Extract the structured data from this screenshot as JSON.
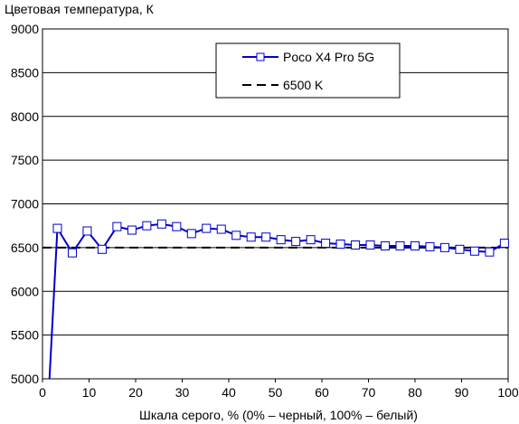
{
  "chart_data": {
    "type": "line",
    "ylabel": "Цветовая температура, К",
    "xlabel": "Шкала серого, % (0% – черный, 100% – белый)",
    "xlim": [
      0,
      100
    ],
    "ylim": [
      5000,
      9000
    ],
    "xticks": [
      "0",
      "10",
      "20",
      "30",
      "40",
      "50",
      "60",
      "70",
      "80",
      "90",
      "100"
    ],
    "yticks": [
      "5000",
      "5500",
      "6000",
      "6500",
      "7000",
      "7500",
      "8000",
      "8500",
      "9000"
    ],
    "grid": "horizontal",
    "legend_position": "top-right",
    "series": [
      {
        "name": "Poco X4 Pro 5G",
        "color": "#0000cc",
        "marker": "square",
        "x": [
          1.5,
          3.2,
          6.4,
          9.6,
          12.8,
          16.0,
          19.2,
          22.4,
          25.6,
          28.8,
          32.0,
          35.2,
          38.4,
          41.6,
          44.8,
          48.0,
          51.2,
          54.4,
          57.6,
          60.8,
          64.0,
          67.2,
          70.4,
          73.6,
          76.8,
          80.0,
          83.2,
          86.4,
          89.6,
          92.8,
          96.0,
          99.2
        ],
        "y": [
          5000,
          6720,
          6440,
          6690,
          6480,
          6740,
          6700,
          6750,
          6770,
          6740,
          6660,
          6720,
          6710,
          6640,
          6620,
          6620,
          6590,
          6570,
          6590,
          6550,
          6540,
          6530,
          6530,
          6520,
          6520,
          6520,
          6510,
          6500,
          6480,
          6460,
          6450,
          6550
        ]
      },
      {
        "name": "6500 K",
        "color": "#000000",
        "style": "dashed",
        "x": [
          0,
          100
        ],
        "y": [
          6500,
          6500
        ]
      }
    ]
  }
}
